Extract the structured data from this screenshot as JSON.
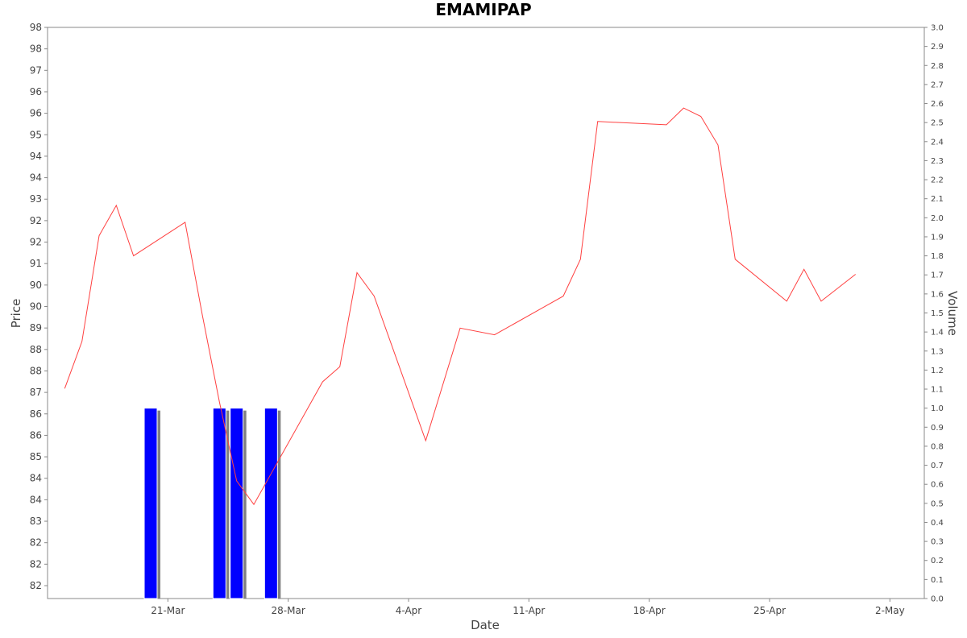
{
  "chart_data": {
    "type": "line",
    "title": "EMAMIPAP",
    "xlabel": "Date",
    "ylabel": "Price",
    "y2label": "Volume",
    "x_ticks": [
      "21-Mar",
      "28-Mar",
      "4-Apr",
      "11-Apr",
      "18-Apr",
      "25-Apr",
      "2-May"
    ],
    "y_tick_labels": [
      "82",
      "82",
      "82",
      "83",
      "84",
      "84",
      "85",
      "86",
      "86",
      "87",
      "88",
      "88",
      "89",
      "90",
      "90",
      "91",
      "92",
      "92",
      "93",
      "94",
      "94",
      "95",
      "96",
      "96",
      "97",
      "98",
      "98"
    ],
    "y2_ticks": [
      "0.0",
      "0.1",
      "0.2",
      "0.3",
      "0.4",
      "0.5",
      "0.6",
      "0.7",
      "0.8",
      "0.9",
      "1.0",
      "1.1",
      "1.2",
      "1.3",
      "1.4",
      "1.5",
      "1.6",
      "1.7",
      "1.8",
      "1.9",
      "2.0",
      "2.1",
      "2.2",
      "2.3",
      "2.4",
      "2.5",
      "2.6",
      "2.7",
      "2.8",
      "2.9",
      "3.0"
    ],
    "ylim": [
      81.5,
      98.5
    ],
    "y2lim": [
      0,
      3.0
    ],
    "grid": false,
    "colors": {
      "price_line": "#ff4040",
      "volume_bar": "#0000ff",
      "volume_shadow": "#808080",
      "axis": "#888888"
    },
    "series": [
      {
        "name": "Price",
        "type": "line",
        "points": [
          {
            "date": "2024-03-15",
            "value": 87.75
          },
          {
            "date": "2024-03-16",
            "value": 89.15
          },
          {
            "date": "2024-03-17",
            "value": 92.3
          },
          {
            "date": "2024-03-18",
            "value": 93.2
          },
          {
            "date": "2024-03-19",
            "value": 91.7
          },
          {
            "date": "2024-03-22",
            "value": 92.7
          },
          {
            "date": "2024-03-23",
            "value": 89.95
          },
          {
            "date": "2024-03-24",
            "value": 87.35
          },
          {
            "date": "2024-03-25",
            "value": 85.0
          },
          {
            "date": "2024-03-26",
            "value": 84.3
          },
          {
            "date": "2024-03-30",
            "value": 87.95
          },
          {
            "date": "2024-03-31",
            "value": 88.4
          },
          {
            "date": "2024-04-01",
            "value": 91.2
          },
          {
            "date": "2024-04-02",
            "value": 90.5
          },
          {
            "date": "2024-04-05",
            "value": 86.2
          },
          {
            "date": "2024-04-07",
            "value": 89.55
          },
          {
            "date": "2024-04-09",
            "value": 89.35
          },
          {
            "date": "2024-04-13",
            "value": 90.5
          },
          {
            "date": "2024-04-14",
            "value": 91.6
          },
          {
            "date": "2024-04-15",
            "value": 95.7
          },
          {
            "date": "2024-04-19",
            "value": 95.6
          },
          {
            "date": "2024-04-20",
            "value": 96.1
          },
          {
            "date": "2024-04-21",
            "value": 95.85
          },
          {
            "date": "2024-04-22",
            "value": 95.0
          },
          {
            "date": "2024-04-23",
            "value": 91.6
          },
          {
            "date": "2024-04-26",
            "value": 90.35
          },
          {
            "date": "2024-04-27",
            "value": 91.3
          },
          {
            "date": "2024-04-28",
            "value": 90.35
          },
          {
            "date": "2024-04-30",
            "value": 91.15
          }
        ]
      },
      {
        "name": "Volume",
        "type": "bar",
        "axis": "right",
        "points": [
          {
            "date": "2024-03-20",
            "value": 1.0
          },
          {
            "date": "2024-03-24",
            "value": 1.0
          },
          {
            "date": "2024-03-25",
            "value": 1.0
          },
          {
            "date": "2024-03-27",
            "value": 1.0
          }
        ]
      }
    ]
  }
}
